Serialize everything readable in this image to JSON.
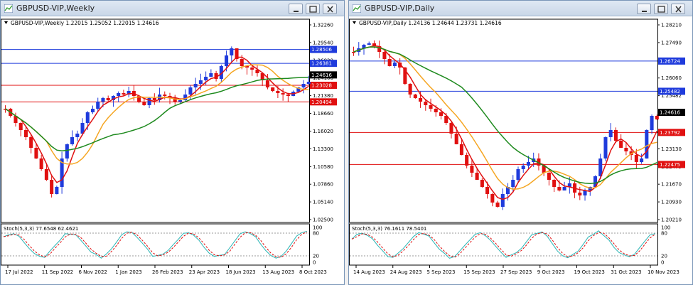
{
  "windows": [
    {
      "id": "left",
      "title": "GBPUSD-VIP,Weekly",
      "info": "GBPUSD-VIP,Weekly  1.22015 1.25052 1.22015 1.24616",
      "axis_labels": [
        "1.32260",
        "1.29540",
        "1.26820",
        "1.24100",
        "1.21380",
        "1.18660",
        "1.16020",
        "1.13300",
        "1.10580",
        "1.07860",
        "1.05140",
        "1.02500"
      ],
      "price_tags": [
        {
          "price": "1.28506",
          "color": "#1f3bdc"
        },
        {
          "price": "1.26381",
          "color": "#1f3bdc"
        },
        {
          "price": "1.24616",
          "color": "#000000"
        },
        {
          "price": "1.23028",
          "color": "#e01010"
        },
        {
          "price": "1.20494",
          "color": "#e01010"
        }
      ],
      "osc_info": "Stoch(5,3,3) 77.6548 62.4621",
      "osc_levels": [
        "100",
        "80",
        "20",
        "0"
      ],
      "date_labels": [
        "17 Jul 2022",
        "11 Sep 2022",
        "6 Nov 2022",
        "1 Jan 2023",
        "26 Feb 2023",
        "23 Apr 2023",
        "18 Jun 2023",
        "13 Aug 2023",
        "8 Oct 2023"
      ]
    },
    {
      "id": "right",
      "title": "GBPUSD-VIP,Daily",
      "info": "GBPUSD-VIP,Daily  1.24136 1.24644 1.23731 1.24616",
      "axis_labels": [
        "1.28210",
        "1.27490",
        "1.26724",
        "1.26060",
        "1.25482",
        "1.24616",
        "1.23792",
        "1.23130",
        "1.22475",
        "1.21670",
        "1.20930",
        "1.20210"
      ],
      "price_tags": [
        {
          "price": "1.26724",
          "color": "#1f3bdc"
        },
        {
          "price": "1.25482",
          "color": "#1f3bdc"
        },
        {
          "price": "1.24616",
          "color": "#000000"
        },
        {
          "price": "1.23792",
          "color": "#e01010"
        },
        {
          "price": "1.22475",
          "color": "#e01010"
        }
      ],
      "osc_info": "Stoch(5,3,3) 76.1611 78.5401",
      "osc_levels": [
        "100",
        "80",
        "20",
        "0"
      ],
      "date_labels": [
        "14 Aug 2023",
        "24 Aug 2023",
        "5 Sep 2023",
        "15 Sep 2023",
        "27 Sep 2023",
        "9 Oct 2023",
        "19 Oct 2023",
        "31 Oct 2023",
        "10 Nov 2023"
      ]
    }
  ],
  "colors": {
    "bull": "#1f3bdc",
    "bear": "#e01010",
    "ma_fast": "#e01010",
    "ma_mid": "#f5a623",
    "ma_slow": "#1e8a1e",
    "stoch_main": "#2ab5b5",
    "stoch_signal": "#e01010"
  }
}
